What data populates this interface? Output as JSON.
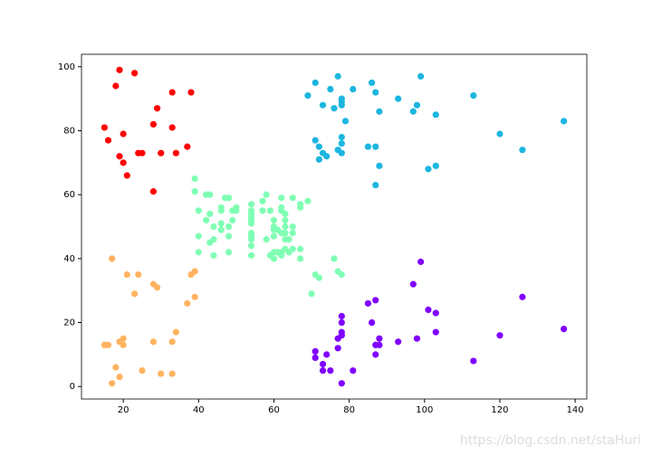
{
  "chart_data": {
    "type": "scatter",
    "xlim": [
      8.9,
      143.1
    ],
    "ylim": [
      -3.9,
      103.9
    ],
    "xticks": [
      20,
      40,
      60,
      80,
      100,
      120,
      140
    ],
    "yticks": [
      0,
      20,
      40,
      60,
      80,
      100
    ],
    "grid": false,
    "series": [
      {
        "color": "#ff0000",
        "x": [
          19,
          23,
          18,
          33,
          38,
          29,
          15,
          28,
          33,
          16,
          20,
          37,
          19,
          20,
          24,
          25,
          30,
          34,
          21,
          28
        ],
        "values": [
          99,
          98,
          94,
          92,
          92,
          87,
          81,
          82,
          81,
          77,
          79,
          75,
          72,
          70,
          73,
          73,
          73,
          73,
          66,
          61
        ]
      },
      {
        "color": "#ffb360",
        "x": [
          17,
          16,
          15,
          17,
          18,
          19,
          19,
          20,
          20,
          21,
          23,
          24,
          25,
          28,
          28,
          29,
          30,
          33,
          33,
          34,
          37,
          38,
          39,
          39
        ],
        "values": [
          40,
          13,
          13,
          1,
          6,
          3,
          14,
          15,
          13,
          35,
          29,
          35,
          5,
          14,
          32,
          31,
          4,
          4,
          14,
          17,
          26,
          35,
          36,
          28
        ]
      },
      {
        "color": "#8000ff",
        "x": [
          71,
          71,
          73,
          73,
          74,
          75,
          77,
          77,
          78,
          78,
          78,
          78,
          78,
          81,
          85,
          86,
          87,
          87,
          87,
          88,
          88,
          93,
          97,
          98,
          99,
          101,
          103,
          103,
          113,
          120,
          126,
          137
        ],
        "values": [
          11,
          9,
          5,
          7,
          10,
          5,
          12,
          15,
          22,
          20,
          17,
          1,
          16,
          5,
          26,
          20,
          27,
          13,
          10,
          13,
          15,
          14,
          32,
          15,
          39,
          24,
          23,
          17,
          8,
          16,
          28,
          18
        ]
      },
      {
        "color": "#1cb6e0",
        "x": [
          69,
          71,
          71,
          72,
          72,
          73,
          73,
          74,
          75,
          76,
          77,
          77,
          78,
          78,
          78,
          78,
          78,
          78,
          79,
          81,
          85,
          86,
          87,
          87,
          88,
          88,
          87,
          93,
          97,
          98,
          99,
          101,
          103,
          103,
          113,
          120,
          126,
          137
        ],
        "values": [
          91,
          77,
          95,
          75,
          71,
          88,
          73,
          72,
          93,
          87,
          97,
          74,
          90,
          89,
          88,
          78,
          76,
          73,
          83,
          93,
          75,
          95,
          92,
          75,
          86,
          69,
          63,
          90,
          86,
          88,
          97,
          68,
          85,
          69,
          91,
          79,
          74,
          83
        ]
      },
      {
        "color": "#80ffb4",
        "x": [
          39,
          39,
          40,
          40,
          40,
          42,
          42,
          43,
          43,
          43,
          44,
          44,
          44,
          46,
          46,
          46,
          46,
          47,
          48,
          48,
          48,
          48,
          49,
          49,
          50,
          50,
          54,
          54,
          54,
          54,
          54,
          54,
          54,
          54,
          54,
          54,
          54,
          57,
          57,
          58,
          58,
          59,
          59,
          60,
          60,
          60,
          60,
          60,
          60,
          61,
          61,
          62,
          62,
          62,
          62,
          62,
          62,
          63,
          63,
          63,
          63,
          63,
          63,
          64,
          64,
          65,
          65,
          65,
          65,
          67,
          67,
          67,
          67,
          69,
          70,
          71,
          72,
          76,
          77,
          78
        ],
        "values": [
          65,
          61,
          55,
          47,
          42,
          52,
          60,
          60,
          54,
          45,
          50,
          46,
          41,
          51,
          56,
          55,
          49,
          59,
          59,
          50,
          47,
          42,
          55,
          52,
          56,
          55,
          57,
          55,
          54,
          53,
          52,
          51,
          48,
          47,
          46,
          44,
          41,
          58,
          55,
          60,
          46,
          55,
          41,
          49,
          40,
          42,
          52,
          47,
          50,
          42,
          49,
          41,
          48,
          59,
          55,
          56,
          42,
          50,
          46,
          43,
          48,
          52,
          54,
          42,
          46,
          48,
          50,
          43,
          59,
          43,
          57,
          56,
          40,
          58,
          29,
          35,
          34,
          40,
          36,
          35
        ]
      }
    ]
  },
  "watermark": "https://blog.csdn.net/staHuri"
}
